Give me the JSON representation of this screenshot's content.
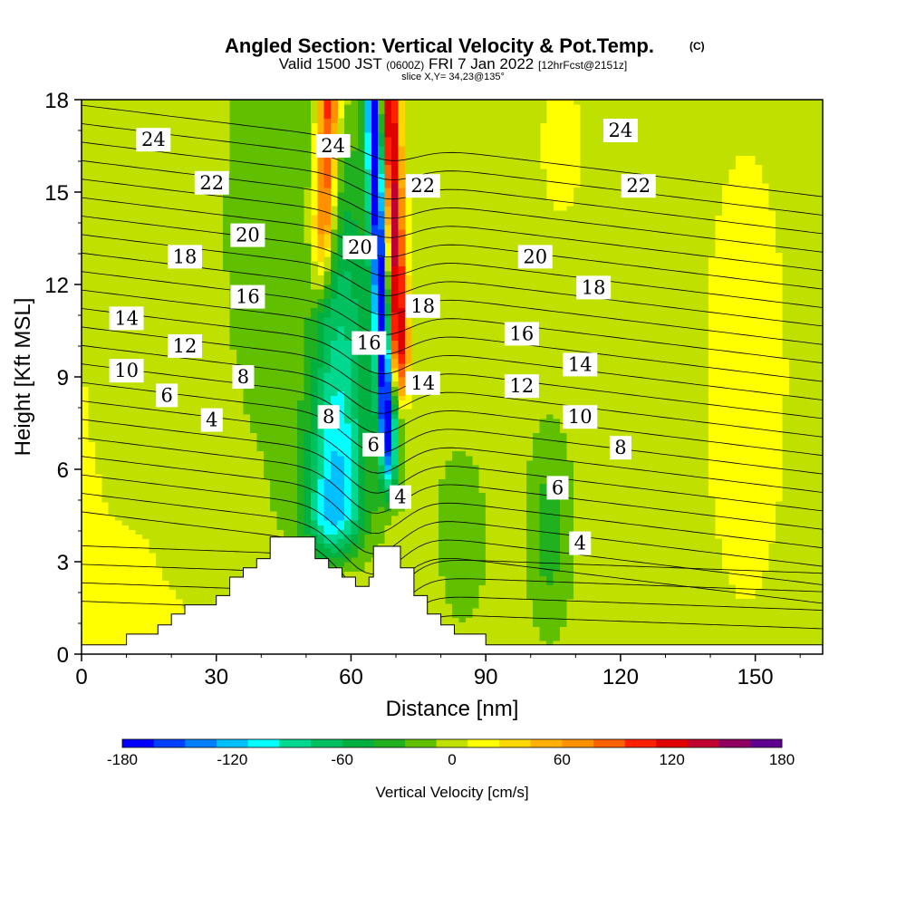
{
  "chart_data": {
    "type": "heatmap",
    "title": "Angled Section: Vertical Velocity & Pot.Temp.",
    "title_mark": "(C)",
    "subtitle_parts": {
      "valid": "Valid 1500 JST",
      "utc": "(0600Z)",
      "date": "FRI 7 Jan 2022",
      "fcst": "[12hrFcst@2151z]"
    },
    "slice_label": "slice X,Y= 34,23@135°",
    "xlabel": "Distance [nm]",
    "ylabel": "Height [Kft MSL]",
    "xlim": [
      0,
      165
    ],
    "ylim": [
      0,
      18
    ],
    "x_ticks": [
      "0",
      "30",
      "60",
      "90",
      "120",
      "150"
    ],
    "x_tick_values": [
      0,
      30,
      60,
      90,
      120,
      150
    ],
    "y_ticks": [
      "0",
      "3",
      "6",
      "9",
      "12",
      "15",
      "18"
    ],
    "y_tick_values": [
      0,
      3,
      6,
      9,
      12,
      15,
      18
    ],
    "colorbar": {
      "label": "Vertical Velocity [cm/s]",
      "min": -180,
      "max": 180,
      "tick_labels": [
        "-180",
        "-120",
        "-60",
        "0",
        "60",
        "120",
        "180"
      ],
      "tick_values": [
        -180,
        -120,
        -60,
        0,
        60,
        120,
        180
      ],
      "colors": [
        "#0000ff",
        "#0040ff",
        "#0080ff",
        "#00c0ff",
        "#00ffff",
        "#00d890",
        "#00c060",
        "#00b040",
        "#20b020",
        "#60c000",
        "#c0e000",
        "#ffff00",
        "#ffd700",
        "#ffb000",
        "#ff9000",
        "#ff6000",
        "#ff2000",
        "#e00000",
        "#c00030",
        "#900060",
        "#600090"
      ]
    },
    "field_description_values": {
      "background_velocity": 10,
      "updraft_max": 150,
      "downdraft_min": -170
    },
    "contour_labels": [
      {
        "text": "24",
        "x": 16,
        "y": 16.7
      },
      {
        "text": "24",
        "x": 56,
        "y": 16.5
      },
      {
        "text": "24",
        "x": 120,
        "y": 17.0
      },
      {
        "text": "22",
        "x": 29,
        "y": 15.3
      },
      {
        "text": "22",
        "x": 76,
        "y": 15.2
      },
      {
        "text": "22",
        "x": 124,
        "y": 15.2
      },
      {
        "text": "20",
        "x": 37,
        "y": 13.6
      },
      {
        "text": "20",
        "x": 62,
        "y": 13.2
      },
      {
        "text": "20",
        "x": 101,
        "y": 12.9
      },
      {
        "text": "18",
        "x": 23,
        "y": 12.9
      },
      {
        "text": "18",
        "x": 76,
        "y": 11.3
      },
      {
        "text": "18",
        "x": 114,
        "y": 11.9
      },
      {
        "text": "16",
        "x": 37,
        "y": 11.6
      },
      {
        "text": "16",
        "x": 64,
        "y": 10.1
      },
      {
        "text": "16",
        "x": 98,
        "y": 10.4
      },
      {
        "text": "14",
        "x": 10,
        "y": 10.9
      },
      {
        "text": "14",
        "x": 76,
        "y": 8.8
      },
      {
        "text": "14",
        "x": 111,
        "y": 9.4
      },
      {
        "text": "12",
        "x": 23,
        "y": 10.0
      },
      {
        "text": "12",
        "x": 98,
        "y": 8.7
      },
      {
        "text": "10",
        "x": 10,
        "y": 9.2
      },
      {
        "text": "10",
        "x": 111,
        "y": 7.7
      },
      {
        "text": "8",
        "x": 36,
        "y": 9.0
      },
      {
        "text": "8",
        "x": 55,
        "y": 7.7
      },
      {
        "text": "8",
        "x": 120,
        "y": 6.7
      },
      {
        "text": "6",
        "x": 19,
        "y": 8.4
      },
      {
        "text": "6",
        "x": 65,
        "y": 6.8
      },
      {
        "text": "6",
        "x": 106,
        "y": 5.4
      },
      {
        "text": "4",
        "x": 29,
        "y": 7.6
      },
      {
        "text": "4",
        "x": 71,
        "y": 5.1
      },
      {
        "text": "4",
        "x": 111,
        "y": 3.6
      }
    ],
    "terrain_profile": [
      [
        0,
        0.3
      ],
      [
        10,
        0.3
      ],
      [
        10,
        0.65
      ],
      [
        17,
        0.65
      ],
      [
        17,
        0.95
      ],
      [
        20,
        0.95
      ],
      [
        20,
        1.3
      ],
      [
        23,
        1.3
      ],
      [
        23,
        1.6
      ],
      [
        30,
        1.6
      ],
      [
        30,
        1.9
      ],
      [
        33,
        1.9
      ],
      [
        33,
        2.5
      ],
      [
        36,
        2.5
      ],
      [
        36,
        2.8
      ],
      [
        39,
        2.8
      ],
      [
        39,
        3.1
      ],
      [
        42,
        3.1
      ],
      [
        42,
        3.8
      ],
      [
        52,
        3.8
      ],
      [
        52,
        3.1
      ],
      [
        55,
        3.1
      ],
      [
        55,
        2.8
      ],
      [
        58,
        2.8
      ],
      [
        58,
        2.5
      ],
      [
        61,
        2.5
      ],
      [
        61,
        2.2
      ],
      [
        64,
        2.2
      ],
      [
        64,
        2.5
      ],
      [
        65,
        2.5
      ],
      [
        65,
        3.5
      ],
      [
        71,
        3.5
      ],
      [
        71,
        2.8
      ],
      [
        74,
        2.8
      ],
      [
        74,
        1.9
      ],
      [
        77,
        1.9
      ],
      [
        77,
        1.3
      ],
      [
        80,
        1.3
      ],
      [
        80,
        0.95
      ],
      [
        83,
        0.95
      ],
      [
        83,
        0.65
      ],
      [
        90,
        0.65
      ],
      [
        90,
        0.3
      ],
      [
        165,
        0.3
      ]
    ]
  }
}
